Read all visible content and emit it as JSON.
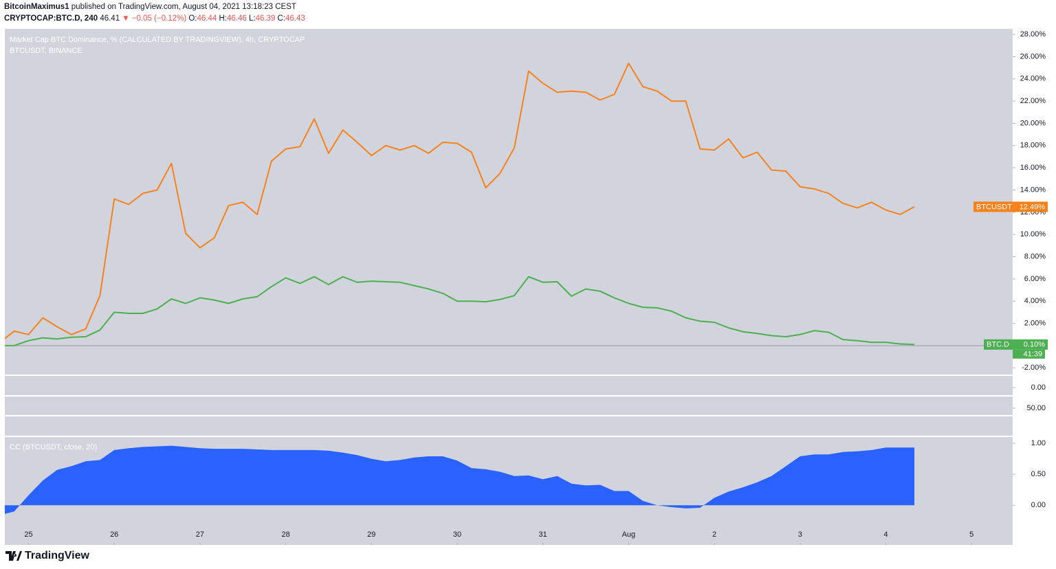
{
  "header": {
    "author": "BitcoinMaximus1",
    "published": "published on TradingView.com, August 04, 2021 13:18:23 CEST",
    "symbol": "CRYPTOCAP:BTC.D, 240",
    "last": "46.41",
    "change": "▼ −0.05 (−0.12%)",
    "ohlc": [
      {
        "label": "O:",
        "value": "46.44"
      },
      {
        "label": "H:",
        "value": "46.46"
      },
      {
        "label": "L:",
        "value": "46.39"
      },
      {
        "label": "C:",
        "value": "46.43"
      }
    ]
  },
  "footer": {
    "brand": "TradingView"
  },
  "chart_data": [
    {
      "type": "line",
      "title": "Market Cap BTC Dominance, % (CALCULATED BY TRADINGVIEW), 4h, CRYPTOCAP",
      "subtitle": "BTCUSDT, BINANCE",
      "xlim": [
        0.34,
        70.88
      ],
      "ylim": [
        -2.6,
        28.5
      ],
      "yticks": [
        {
          "value": 28,
          "label": "28.00%"
        },
        {
          "value": 26,
          "label": "26.00%"
        },
        {
          "value": 24,
          "label": "24.00%"
        },
        {
          "value": 22,
          "label": "22.00%"
        },
        {
          "value": 20,
          "label": "20.00%"
        },
        {
          "value": 18,
          "label": "18.00%"
        },
        {
          "value": 16,
          "label": "16.00%"
        },
        {
          "value": 14,
          "label": "14.00%"
        },
        {
          "value": 12,
          "label": "12.00%"
        },
        {
          "value": 10,
          "label": "10.00%"
        },
        {
          "value": 8,
          "label": "8.00%"
        },
        {
          "value": 6,
          "label": "6.00%"
        },
        {
          "value": 4,
          "label": "4.00%"
        },
        {
          "value": 2,
          "label": "2.00%"
        },
        {
          "value": -2,
          "label": "-2.00%"
        }
      ],
      "series": [
        {
          "name": "BTCUSDT",
          "color": "#f7821b",
          "last_label": "12.49%",
          "values": [
            0.3,
            1.3,
            1.0,
            2.5,
            1.7,
            1.0,
            1.5,
            4.5,
            13.2,
            12.7,
            13.7,
            14.0,
            16.4,
            10.1,
            8.8,
            9.7,
            12.6,
            12.9,
            11.8,
            16.6,
            17.7,
            17.9,
            20.4,
            17.3,
            19.4,
            18.3,
            17.1,
            18.0,
            17.6,
            18.0,
            17.3,
            18.3,
            18.2,
            17.4,
            14.2,
            15.5,
            17.8,
            24.7,
            23.6,
            22.8,
            22.9,
            22.8,
            22.1,
            22.6,
            25.4,
            23.3,
            22.9,
            22.0,
            22.0,
            17.7,
            17.6,
            18.6,
            16.9,
            17.4,
            15.8,
            15.7,
            14.3,
            14.1,
            13.7,
            12.8,
            12.4,
            12.9,
            12.2,
            11.8,
            12.49
          ]
        },
        {
          "name": "BTC.D",
          "color": "#4caf50",
          "last_label": "0.10%",
          "countdown": "41:39",
          "values": [
            0.0,
            0.0,
            0.45,
            0.7,
            0.6,
            0.75,
            0.8,
            1.4,
            3.0,
            2.9,
            2.9,
            3.3,
            4.2,
            3.8,
            4.3,
            4.1,
            3.8,
            4.2,
            4.4,
            5.3,
            6.1,
            5.6,
            6.2,
            5.5,
            6.2,
            5.7,
            5.8,
            5.75,
            5.7,
            5.4,
            5.1,
            4.7,
            4.0,
            4.0,
            3.95,
            4.15,
            4.5,
            6.2,
            5.7,
            5.75,
            4.45,
            5.1,
            4.9,
            4.3,
            3.8,
            3.45,
            3.4,
            3.1,
            2.5,
            2.2,
            2.1,
            1.6,
            1.25,
            1.1,
            0.9,
            0.8,
            1.0,
            1.35,
            1.2,
            0.55,
            0.45,
            0.3,
            0.3,
            0.15,
            0.1
          ]
        }
      ]
    },
    {
      "type": "empty",
      "yticks": [
        {
          "value": 0,
          "label": "0.00"
        }
      ]
    },
    {
      "type": "empty",
      "yticks": [
        {
          "value": 50,
          "label": "50.00"
        }
      ]
    },
    {
      "type": "area",
      "title": "CC (BTCUSDT, close, 20)",
      "color": "#2962ff",
      "xlim": [
        0.34,
        70.88
      ],
      "ylim": [
        -0.64,
        1.1
      ],
      "yticks": [
        {
          "value": 1,
          "label": "1.00"
        },
        {
          "value": 0.5,
          "label": "0.50"
        },
        {
          "value": 0,
          "label": "0.00"
        }
      ],
      "xticks": [
        {
          "value": 2,
          "label": "25"
        },
        {
          "value": 8,
          "label": "26"
        },
        {
          "value": 14,
          "label": "27"
        },
        {
          "value": 20,
          "label": "28"
        },
        {
          "value": 26,
          "label": "29"
        },
        {
          "value": 32,
          "label": "30"
        },
        {
          "value": 38,
          "label": "31"
        },
        {
          "value": 44,
          "label": "Aug"
        },
        {
          "value": 50,
          "label": "2"
        },
        {
          "value": 56,
          "label": "3"
        },
        {
          "value": 62,
          "label": "4"
        },
        {
          "value": 68,
          "label": "5"
        }
      ],
      "values": [
        -0.16,
        -0.1,
        0.16,
        0.4,
        0.57,
        0.63,
        0.71,
        0.73,
        0.89,
        0.92,
        0.94,
        0.95,
        0.96,
        0.94,
        0.92,
        0.91,
        0.91,
        0.91,
        0.9,
        0.89,
        0.89,
        0.89,
        0.89,
        0.88,
        0.85,
        0.81,
        0.75,
        0.71,
        0.73,
        0.77,
        0.79,
        0.79,
        0.72,
        0.6,
        0.58,
        0.54,
        0.47,
        0.48,
        0.42,
        0.47,
        0.35,
        0.32,
        0.33,
        0.23,
        0.23,
        0.07,
        0.0,
        -0.03,
        -0.05,
        -0.04,
        0.12,
        0.22,
        0.29,
        0.37,
        0.47,
        0.63,
        0.79,
        0.82,
        0.82,
        0.86,
        0.87,
        0.89,
        0.93,
        0.93,
        0.93
      ]
    }
  ]
}
